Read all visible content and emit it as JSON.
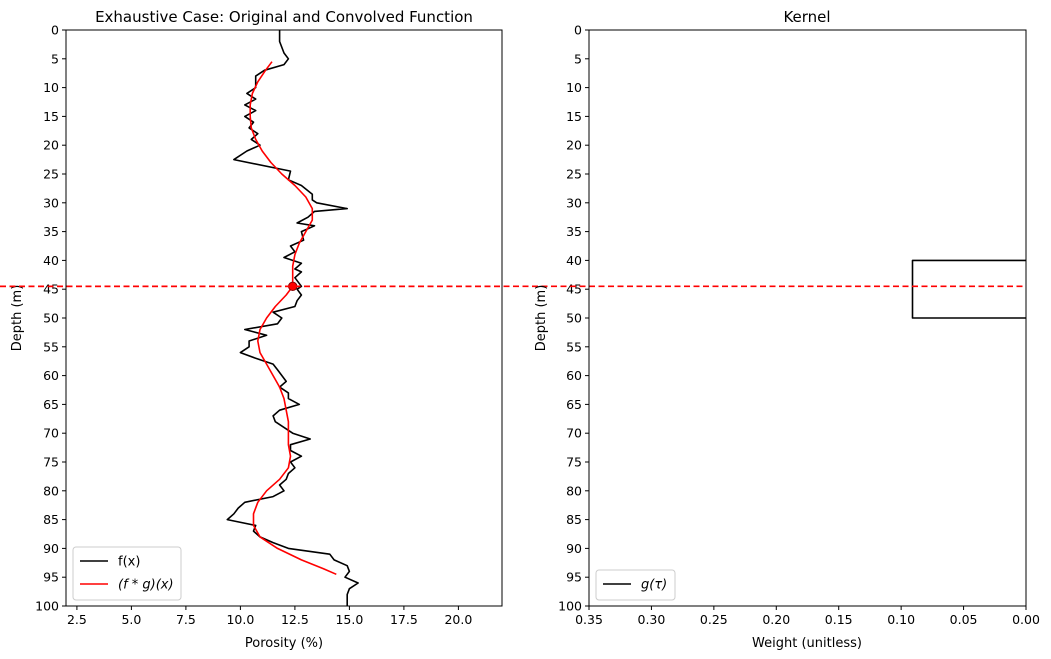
{
  "chart_data": [
    {
      "type": "line",
      "title": "Exhaustive Case: Original and Convolved Function",
      "xlabel": "Porosity (%)",
      "ylabel": "Depth (m)",
      "xlim": [
        2.0,
        22.0
      ],
      "ylim": [
        100,
        0
      ],
      "xticks": [
        "2.5",
        "5.0",
        "7.5",
        "10.0",
        "12.5",
        "15.0",
        "17.5",
        "20.0"
      ],
      "yticks": [
        "0",
        "5",
        "10",
        "15",
        "20",
        "25",
        "30",
        "35",
        "40",
        "45",
        "50",
        "55",
        "60",
        "65",
        "70",
        "75",
        "80",
        "85",
        "90",
        "95",
        "100"
      ],
      "legend_position": "lower-left",
      "series": [
        {
          "name": "f(x)",
          "color": "#000000",
          "points": [
            [
              11.8,
              0
            ],
            [
              11.8,
              2
            ],
            [
              12.0,
              4
            ],
            [
              12.2,
              5
            ],
            [
              12.0,
              6
            ],
            [
              11.1,
              7
            ],
            [
              10.7,
              8
            ],
            [
              10.7,
              10
            ],
            [
              10.3,
              11
            ],
            [
              10.7,
              12
            ],
            [
              10.2,
              13
            ],
            [
              10.7,
              14
            ],
            [
              10.2,
              15
            ],
            [
              10.6,
              16
            ],
            [
              10.4,
              17
            ],
            [
              10.8,
              18
            ],
            [
              10.5,
              19
            ],
            [
              10.9,
              20
            ],
            [
              10.3,
              21
            ],
            [
              9.7,
              22.5
            ],
            [
              12.3,
              24.5
            ],
            [
              12.2,
              26
            ],
            [
              12.8,
              27
            ],
            [
              13.3,
              28.5
            ],
            [
              13.3,
              29.5
            ],
            [
              13.5,
              30
            ],
            [
              14.9,
              31
            ],
            [
              13.4,
              31.5
            ],
            [
              13.1,
              32.5
            ],
            [
              12.6,
              33.5
            ],
            [
              13.4,
              34
            ],
            [
              12.8,
              35
            ],
            [
              12.9,
              36.5
            ],
            [
              12.3,
              37.5
            ],
            [
              12.5,
              38.5
            ],
            [
              12.0,
              39.5
            ],
            [
              12.8,
              40.5
            ],
            [
              12.5,
              41.5
            ],
            [
              12.8,
              42
            ],
            [
              12.5,
              43
            ],
            [
              12.8,
              44.5
            ],
            [
              12.6,
              45
            ],
            [
              12.8,
              46
            ],
            [
              12.6,
              47
            ],
            [
              12.5,
              48
            ],
            [
              11.5,
              49
            ],
            [
              11.9,
              50
            ],
            [
              11.7,
              51
            ],
            [
              10.2,
              52
            ],
            [
              11.2,
              53
            ],
            [
              10.4,
              54
            ],
            [
              10.4,
              55
            ],
            [
              10.0,
              56
            ],
            [
              10.7,
              57
            ],
            [
              11.5,
              58
            ],
            [
              11.7,
              59
            ],
            [
              12.1,
              61
            ],
            [
              11.8,
              62
            ],
            [
              12.2,
              63
            ],
            [
              12.2,
              64
            ],
            [
              12.7,
              65
            ],
            [
              11.8,
              66
            ],
            [
              11.5,
              67
            ],
            [
              11.6,
              68
            ],
            [
              12.0,
              69
            ],
            [
              12.4,
              70
            ],
            [
              13.2,
              71
            ],
            [
              12.3,
              72
            ],
            [
              12.3,
              73
            ],
            [
              12.8,
              74
            ],
            [
              12.3,
              75
            ],
            [
              12.5,
              76
            ],
            [
              12.2,
              77
            ],
            [
              12.1,
              78
            ],
            [
              11.8,
              79
            ],
            [
              12.0,
              80
            ],
            [
              11.5,
              81
            ],
            [
              10.2,
              82
            ],
            [
              9.9,
              83
            ],
            [
              9.7,
              84
            ],
            [
              9.4,
              85
            ],
            [
              10.7,
              86
            ],
            [
              10.6,
              87
            ],
            [
              10.9,
              88
            ],
            [
              11.5,
              89
            ],
            [
              12.2,
              90
            ],
            [
              14.1,
              91
            ],
            [
              14.3,
              92
            ],
            [
              14.9,
              93
            ],
            [
              15.0,
              94
            ],
            [
              14.8,
              95
            ],
            [
              15.4,
              96
            ],
            [
              15.0,
              97
            ],
            [
              14.9,
              98
            ],
            [
              14.9,
              100
            ]
          ]
        },
        {
          "name": "(f * g)(x)",
          "color": "#ff0000",
          "points": [
            [
              11.45,
              5.5
            ],
            [
              11.15,
              7
            ],
            [
              10.8,
              9
            ],
            [
              10.55,
              11
            ],
            [
              10.45,
              13
            ],
            [
              10.45,
              15
            ],
            [
              10.5,
              17
            ],
            [
              10.7,
              19
            ],
            [
              11.0,
              21
            ],
            [
              11.4,
              23
            ],
            [
              11.9,
              25
            ],
            [
              12.5,
              27
            ],
            [
              13.0,
              29
            ],
            [
              13.3,
              31
            ],
            [
              13.3,
              33
            ],
            [
              13.0,
              35
            ],
            [
              12.7,
              37
            ],
            [
              12.5,
              39
            ],
            [
              12.4,
              41
            ],
            [
              12.4,
              43
            ],
            [
              12.4,
              44.5
            ],
            [
              12.1,
              46
            ],
            [
              11.6,
              48
            ],
            [
              11.2,
              50
            ],
            [
              10.9,
              52
            ],
            [
              10.8,
              54
            ],
            [
              10.9,
              56
            ],
            [
              11.2,
              58
            ],
            [
              11.5,
              60
            ],
            [
              11.8,
              62
            ],
            [
              12.0,
              64
            ],
            [
              12.1,
              66
            ],
            [
              12.2,
              68
            ],
            [
              12.2,
              70
            ],
            [
              12.2,
              72
            ],
            [
              12.3,
              74
            ],
            [
              12.2,
              76
            ],
            [
              11.8,
              78
            ],
            [
              11.2,
              80
            ],
            [
              10.8,
              82
            ],
            [
              10.6,
              84
            ],
            [
              10.6,
              86
            ],
            [
              10.9,
              88
            ],
            [
              11.7,
              90
            ],
            [
              12.8,
              92
            ],
            [
              13.8,
              93.5
            ],
            [
              14.4,
              94.5
            ]
          ]
        }
      ],
      "marker": {
        "x": 12.4,
        "y": 44.5,
        "color": "#ff0000"
      },
      "hline": {
        "y": 44.5,
        "color": "#ff0000",
        "style": "dashed"
      }
    },
    {
      "type": "line",
      "title": "Kernel",
      "xlabel": "Weight (unitless)",
      "ylabel": "Depth (m)",
      "xlim": [
        0.35,
        0.0
      ],
      "ylim": [
        100,
        0
      ],
      "xticks": [
        "0.35",
        "0.30",
        "0.25",
        "0.20",
        "0.15",
        "0.10",
        "0.05",
        "0.00"
      ],
      "yticks": [
        "0",
        "5",
        "10",
        "15",
        "20",
        "25",
        "30",
        "35",
        "40",
        "45",
        "50",
        "55",
        "60",
        "65",
        "70",
        "75",
        "80",
        "85",
        "90",
        "95",
        "100"
      ],
      "legend_position": "lower-left",
      "series": [
        {
          "name": "g(τ)",
          "color": "#000000",
          "points": [
            [
              0.0,
              40
            ],
            [
              0.0909,
              40
            ],
            [
              0.0909,
              50
            ],
            [
              0.0,
              50
            ]
          ]
        }
      ],
      "hline": {
        "y": 44.5,
        "color": "#ff0000",
        "style": "dashed"
      }
    }
  ]
}
